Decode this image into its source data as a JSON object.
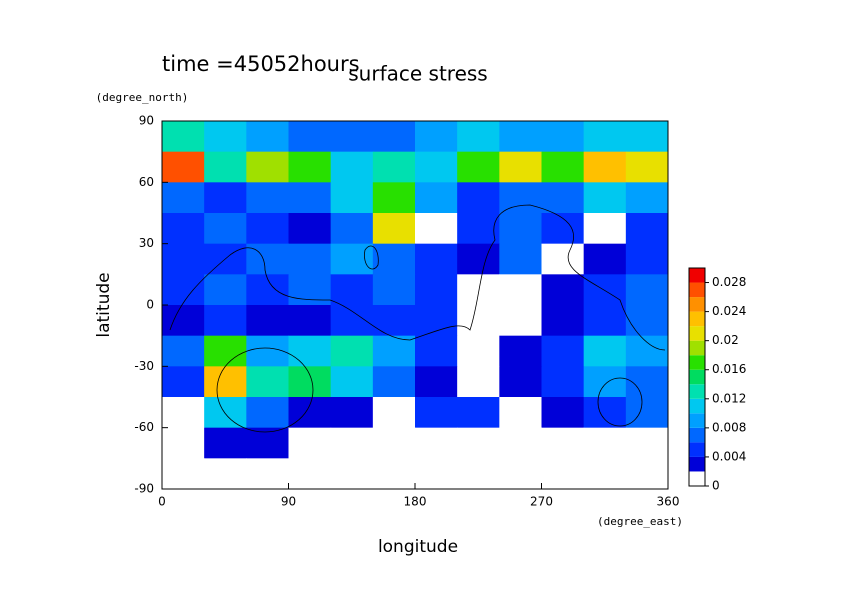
{
  "chart_data": {
    "type": "contour",
    "title": "surface stress",
    "subtitle": "time =45052hours",
    "x_label": "longitude",
    "y_label": "latitude",
    "x_unit": "(degree_east)",
    "y_unit": "(degree_north)",
    "xlim": [
      0,
      360
    ],
    "ylim": [
      -90,
      90
    ],
    "xticks": [
      0,
      90,
      180,
      270,
      360
    ],
    "yticks": [
      -90,
      -60,
      -30,
      0,
      30,
      60,
      90
    ],
    "lon": [
      15,
      45,
      75,
      105,
      135,
      165,
      195,
      225,
      255,
      285,
      315,
      345
    ],
    "lat": [
      82.5,
      67.5,
      52.5,
      37.5,
      22.5,
      7.5,
      -7.5,
      -22.5,
      -37.5,
      -52.5,
      -67.5,
      -82.5
    ],
    "values": [
      [
        0.012,
        0.01,
        0.008,
        0.006,
        0.006,
        0.006,
        0.008,
        0.01,
        0.008,
        0.008,
        0.01,
        0.01
      ],
      [
        0.026,
        0.012,
        0.018,
        0.016,
        0.01,
        0.012,
        0.01,
        0.016,
        0.02,
        0.016,
        0.022,
        0.02
      ],
      [
        0.006,
        0.004,
        0.006,
        0.006,
        0.01,
        0.016,
        0.008,
        0.004,
        0.006,
        0.006,
        0.01,
        0.008
      ],
      [
        0.004,
        0.006,
        0.004,
        0.002,
        0.006,
        0.02,
        0,
        0.004,
        0.006,
        0.004,
        0,
        0.004
      ],
      [
        0.004,
        0.004,
        0.006,
        0.006,
        0.008,
        0.006,
        0.004,
        0.002,
        0.006,
        0,
        0.002,
        0.004
      ],
      [
        0.004,
        0.006,
        0.004,
        0.006,
        0.004,
        0.006,
        0.004,
        0,
        0,
        0.002,
        0.004,
        0.006
      ],
      [
        0.002,
        0.004,
        0.002,
        0.002,
        0.004,
        0.004,
        0.004,
        0,
        0,
        0.002,
        0.004,
        0.006
      ],
      [
        0.006,
        0.016,
        0.008,
        0.01,
        0.012,
        0.008,
        0.004,
        0,
        0.002,
        0.004,
        0.01,
        0.008
      ],
      [
        0.004,
        0.022,
        0.012,
        0.014,
        0.01,
        0.006,
        0.002,
        0,
        0.002,
        0.004,
        0.008,
        0.006
      ],
      [
        0,
        0.01,
        0.006,
        0.002,
        0.002,
        0,
        0.004,
        0.004,
        0,
        0.002,
        0.004,
        0.006
      ],
      [
        0,
        0.002,
        0.002,
        0,
        0,
        0,
        0,
        0,
        0,
        0,
        0,
        0
      ],
      [
        0,
        0,
        0,
        0,
        0,
        0,
        0,
        0,
        0,
        0,
        0,
        0
      ]
    ],
    "levels": [
      0,
      0.002,
      0.004,
      0.006,
      0.008,
      0.01,
      0.012,
      0.014,
      0.016,
      0.018,
      0.02,
      0.022,
      0.024,
      0.026,
      0.028,
      0.03
    ],
    "colors": [
      "#ffffff",
      "#0000d8",
      "#0030ff",
      "#0068ff",
      "#00a0ff",
      "#00c8f0",
      "#00e0b0",
      "#00dc60",
      "#28e000",
      "#a0e000",
      "#e8e000",
      "#ffc000",
      "#ff9000",
      "#ff5000",
      "#f00000"
    ],
    "colorbar_ticks": [
      0,
      0.004,
      0.008,
      0.012,
      0.016,
      0.02,
      0.024,
      0.028
    ]
  }
}
